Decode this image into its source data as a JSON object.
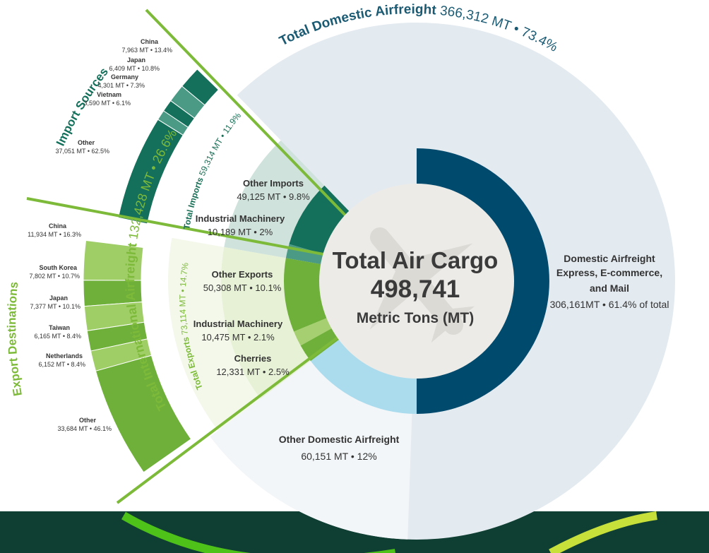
{
  "chart_data": {
    "type": "sunburst",
    "center": {
      "title": "Total Air Cargo",
      "value": "498,741",
      "unit": "Metric Tons (MT)"
    },
    "total_mt": 498741,
    "groups": [
      {
        "key": "domestic",
        "name": "Total Domestic Airfreight",
        "value_label": "366,312 MT • 73.4%",
        "value_mt": 366312,
        "color": "#e4ebf0",
        "children": [
          {
            "name_lines": [
              "Domestic Airfreight",
              "Express, E-commerce,",
              "and Mail"
            ],
            "value_label": "306,161MT • 61.4% of total",
            "value_mt": 306161,
            "color": "#004a6d"
          },
          {
            "name_lines": [
              "Other Domestic Airfreight"
            ],
            "value_label": "60,151 MT •  12%",
            "value_mt": 60151,
            "color": "#aadcee"
          }
        ]
      },
      {
        "key": "international",
        "name": "Total International Airfreight",
        "value_label": "132,428 MT • 26.6%",
        "value_mt": 132428,
        "color": "#8cc63f",
        "subgroups": [
          {
            "key": "imports",
            "name": "Total Imports",
            "value_label": "59,314 MT • 11.9%",
            "value_mt": 59314,
            "color": "#1a6e55",
            "children": [
              {
                "name_lines": [
                  "Other Imports"
                ],
                "value_label": "49,125 MT • 9.8%",
                "value_mt": 49125,
                "color": "#14705a"
              },
              {
                "name_lines": [
                  "Industrial Machinery"
                ],
                "value_label": "10,189 MT • 2%",
                "value_mt": 10189,
                "color": "#4a9a86"
              }
            ]
          },
          {
            "key": "exports",
            "name": "Total Exports",
            "value_label": "73,114 MT • 14.7%",
            "value_mt": 73114,
            "color": "#7dba3a",
            "children": [
              {
                "name_lines": [
                  "Other Exports"
                ],
                "value_label": "50,308 MT • 10.1%",
                "value_mt": 50308,
                "color": "#6fb03a"
              },
              {
                "name_lines": [
                  "Industrial Machinery"
                ],
                "value_label": "10,475 MT • 2.1%",
                "value_mt": 10475,
                "color": "#a5cf70"
              },
              {
                "name_lines": [
                  "Cherries"
                ],
                "value_label": "12,331 MT • 2.5%",
                "value_mt": 12331,
                "color": "#6fb03a"
              }
            ]
          }
        ]
      }
    ],
    "import_sources": {
      "title": "Import Sources",
      "items": [
        {
          "name": "China",
          "value_label": "7,963 MT • 13.4%",
          "value_mt": 7963,
          "color": "#14705a"
        },
        {
          "name": "Japan",
          "value_label": "6,409 MT • 10.8%",
          "value_mt": 6409,
          "color": "#4a9a86"
        },
        {
          "name": "Germany",
          "value_label": "4,301 MT • 7.3%",
          "value_mt": 4301,
          "color": "#14705a"
        },
        {
          "name": "Vietnam",
          "value_label": "3,590 MT • 6.1%",
          "value_mt": 3590,
          "color": "#4a9a86"
        },
        {
          "name": "Other",
          "value_label": "37,051 MT • 62.5%",
          "value_mt": 37051,
          "color": "#14705a"
        }
      ]
    },
    "export_destinations": {
      "title": "Export Destinations",
      "items": [
        {
          "name": "China",
          "value_label": "11,934 MT • 16.3%",
          "value_mt": 11934,
          "color": "#9fcd66"
        },
        {
          "name": "South Korea",
          "value_label": "7,802 MT • 10.7%",
          "value_mt": 7802,
          "color": "#6fb03a"
        },
        {
          "name": "Japan",
          "value_label": "7,377 MT • 10.1%",
          "value_mt": 7377,
          "color": "#9fcd66"
        },
        {
          "name": "Taiwan",
          "value_label": "6,165 MT • 8.4%",
          "value_mt": 6165,
          "color": "#6fb03a"
        },
        {
          "name": "Netherlands",
          "value_label": "6,152  MT • 8.4%",
          "value_mt": 6152,
          "color": "#9fcd66"
        },
        {
          "name": "Other",
          "value_label": "33,684 MT • 46.1%",
          "value_mt": 33684,
          "color": "#6fb03a"
        }
      ]
    },
    "colors": {
      "footer_bg": "#0f3f33",
      "accent_green": "#7dba3a",
      "dark_teal": "#14705a",
      "domestic_title": "#1a5a73",
      "center_bg": "#ecebe8"
    }
  }
}
